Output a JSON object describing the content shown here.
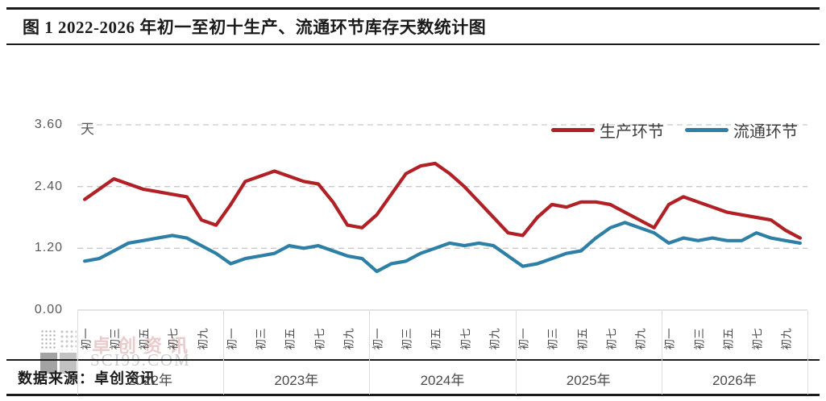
{
  "title": "图 1 2022-2026 年初一至初十生产、流通环节库存天数统计图",
  "source": "数据来源：卓创资讯",
  "watermark": {
    "brand": "卓创资讯",
    "site": "SCI99.COM",
    "logo": "sci99-pixel-logo"
  },
  "chart_data": {
    "type": "line",
    "unit_label": "天",
    "ylabel": "天",
    "ylim": [
      0.0,
      3.6
    ],
    "y_ticks": [
      "3.60",
      "2.40",
      "1.20",
      "0.00"
    ],
    "y_tick_values": [
      3.6,
      2.4,
      1.2,
      0.0
    ],
    "grid": "horizontal dashed",
    "legend_position": "top-right inside plot",
    "years": [
      "2022年",
      "2023年",
      "2024年",
      "2025年",
      "2026年"
    ],
    "days_per_year": 10,
    "day_tick_labels": [
      "初一",
      "初三",
      "初五",
      "初七",
      "初九"
    ],
    "day_tick_slots": [
      0,
      2,
      4,
      6,
      8
    ],
    "series": [
      {
        "name": "生产环节",
        "color": "#b02025",
        "values": [
          2.15,
          2.35,
          2.55,
          2.45,
          2.35,
          2.3,
          2.25,
          2.2,
          1.75,
          1.65,
          2.05,
          2.5,
          2.6,
          2.7,
          2.6,
          2.5,
          2.45,
          2.1,
          1.65,
          1.6,
          1.85,
          2.25,
          2.65,
          2.8,
          2.85,
          2.65,
          2.4,
          2.1,
          1.8,
          1.5,
          1.45,
          1.8,
          2.05,
          2.0,
          2.1,
          2.1,
          2.05,
          1.9,
          1.75,
          1.6,
          2.05,
          2.2,
          2.1,
          2.0,
          1.9,
          1.85,
          1.8,
          1.75,
          1.55,
          1.4
        ]
      },
      {
        "name": "流通环节",
        "color": "#2e7fa5",
        "values": [
          0.95,
          1.0,
          1.15,
          1.3,
          1.35,
          1.4,
          1.45,
          1.4,
          1.25,
          1.1,
          0.9,
          1.0,
          1.05,
          1.1,
          1.25,
          1.2,
          1.25,
          1.15,
          1.05,
          1.0,
          0.75,
          0.9,
          0.95,
          1.1,
          1.2,
          1.3,
          1.25,
          1.3,
          1.25,
          1.05,
          0.85,
          0.9,
          1.0,
          1.1,
          1.15,
          1.4,
          1.6,
          1.7,
          1.6,
          1.5,
          1.3,
          1.4,
          1.35,
          1.4,
          1.35,
          1.35,
          1.5,
          1.4,
          1.35,
          1.3
        ]
      }
    ],
    "grid_color": "#c9c9c9",
    "axis_line_color": "#d4d4d4"
  }
}
